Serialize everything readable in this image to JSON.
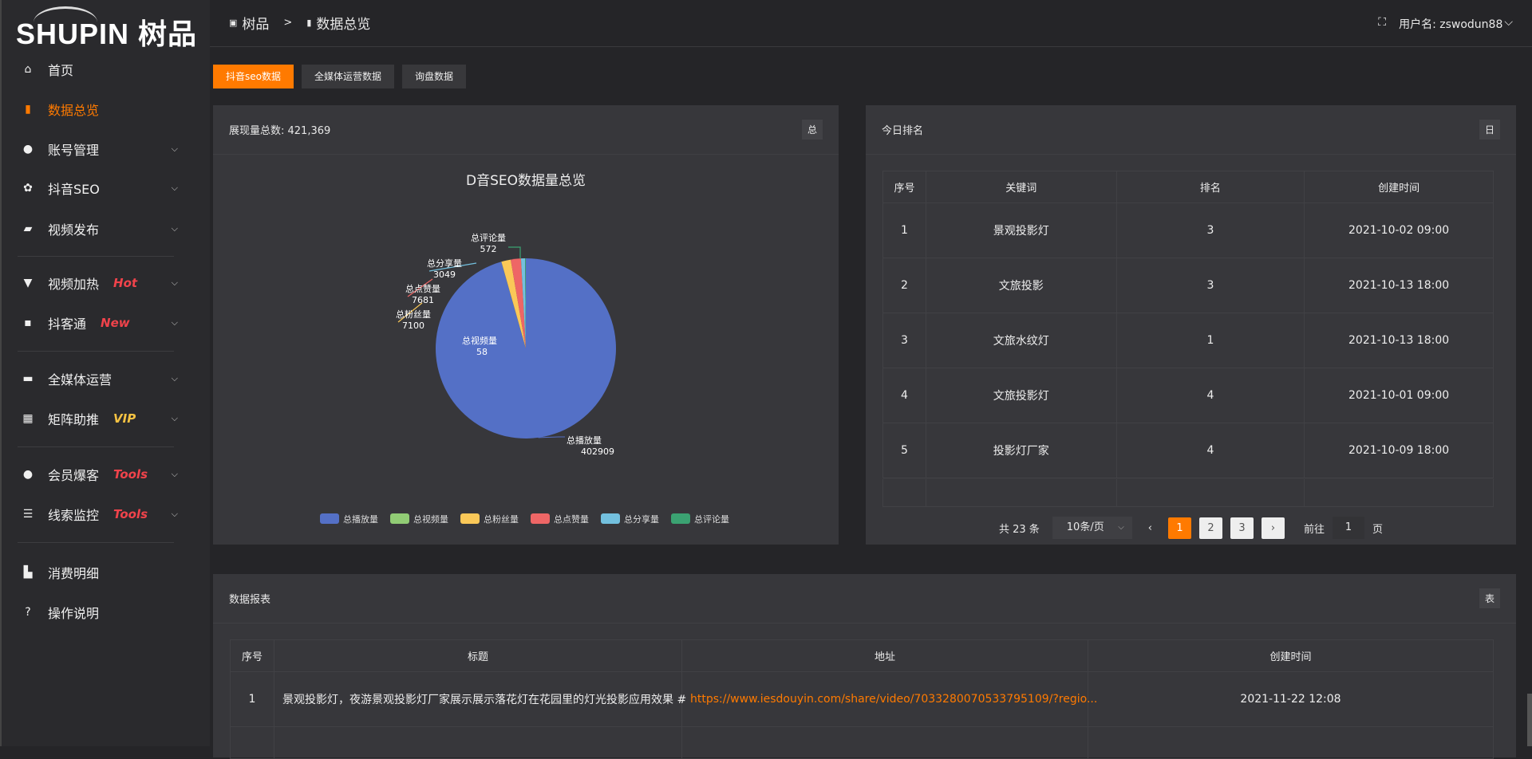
{
  "logo": {
    "text": "SHUPIN 树品"
  },
  "breadcrumb": {
    "root": "树品",
    "sep": ">",
    "current": "数据总览"
  },
  "user": {
    "label": "用户名: zswodun88",
    "chevron": "⌵"
  },
  "sidebar": {
    "items": [
      {
        "label": "首页",
        "icon": "home-icon",
        "glyph": "⌂"
      },
      {
        "label": "数据总览",
        "icon": "bar-chart-icon",
        "glyph": "▮",
        "active": true
      },
      {
        "label": "账号管理",
        "icon": "user-icon",
        "glyph": "●",
        "chev": true
      },
      {
        "label": "抖音SEO",
        "icon": "gear-icon",
        "glyph": "✿",
        "chev": true
      },
      {
        "label": "视频发布",
        "icon": "camera-icon",
        "glyph": "▰",
        "chev": true
      },
      {
        "label": "视频加热",
        "icon": "flag-icon",
        "glyph": "▼",
        "chev": true,
        "badge": "Hot",
        "badgeColor": "#f0434b"
      },
      {
        "label": "抖客通",
        "icon": "chat-icon",
        "glyph": "▪",
        "chev": true,
        "badge": "New",
        "badgeColor": "#f0434b"
      },
      {
        "label": "全媒体运营",
        "icon": "monitor-icon",
        "glyph": "▬",
        "chev": true
      },
      {
        "label": "矩阵助推",
        "icon": "grid-icon",
        "glyph": "▦",
        "chev": true,
        "badge": "VIP",
        "badgeColor": "#f5c242"
      },
      {
        "label": "会员爆客",
        "icon": "member-icon",
        "glyph": "●",
        "chev": true,
        "badge": "Tools",
        "badgeColor": "#f0434b"
      },
      {
        "label": "线索监控",
        "icon": "sliders-icon",
        "glyph": "☰",
        "chev": true,
        "badge": "Tools",
        "badgeColor": "#f0434b"
      },
      {
        "label": "消费明细",
        "icon": "wallet-icon",
        "glyph": "▙"
      },
      {
        "label": "操作说明",
        "icon": "help-icon",
        "glyph": "?"
      }
    ]
  },
  "tabs": [
    "抖音seo数据",
    "全媒体运营数据",
    "询盘数据"
  ],
  "overview": {
    "title": "展现量总数: 421,369",
    "tag": "总"
  },
  "chart_data": {
    "type": "pie",
    "title": "D音SEO数据量总览",
    "legend_position": "bottom",
    "categories": [
      "总播放量",
      "总视频量",
      "总粉丝量",
      "总点赞量",
      "总分享量",
      "总评论量"
    ],
    "values": [
      402909,
      58,
      7100,
      7681,
      3049,
      572
    ],
    "colors": [
      "#5470c6",
      "#91cc75",
      "#fac858",
      "#ee6666",
      "#73c0de",
      "#3ba272"
    ]
  },
  "ranking": {
    "title": "今日排名",
    "tag": "日",
    "columns": [
      "序号",
      "关键词",
      "排名",
      "创建时间"
    ],
    "rows": [
      [
        "1",
        "景观投影灯",
        "3",
        "2021-10-02 09:00"
      ],
      [
        "2",
        "文旅投影",
        "3",
        "2021-10-13 18:00"
      ],
      [
        "3",
        "文旅水纹灯",
        "1",
        "2021-10-13 18:00"
      ],
      [
        "4",
        "文旅投影灯",
        "4",
        "2021-10-01 09:00"
      ],
      [
        "5",
        "投影灯厂家",
        "4",
        "2021-10-09 18:00"
      ]
    ],
    "pagination": {
      "total": "共 23 条",
      "page_size": "10条/页",
      "pages": [
        "1",
        "2",
        "3"
      ],
      "goto_label": "前往",
      "goto_value": "1",
      "page_unit": "页"
    }
  },
  "report": {
    "title": "数据报表",
    "tag": "表",
    "columns": [
      "序号",
      "标题",
      "地址",
      "创建时间"
    ],
    "rows": [
      [
        "1",
        "景观投影灯，夜游景观投影灯厂家展示展示落花灯在花园里的灯光投影应用效果 #",
        "https://www.iesdouyin.com/share/video/7033280070533795109/?regio...",
        "2021-11-22 12:08"
      ]
    ]
  },
  "accent": "#ff7a00"
}
